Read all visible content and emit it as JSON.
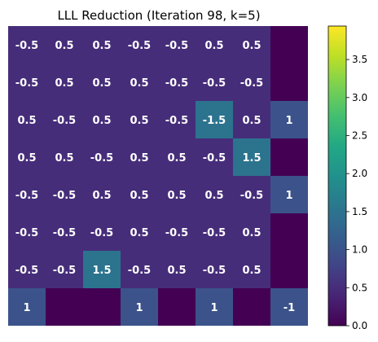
{
  "chart_data": {
    "type": "heatmap",
    "title": "LLL Reduction (Iteration 98, k=5)",
    "rows": 8,
    "cols": 8,
    "values": [
      [
        -0.5,
        0.5,
        0.5,
        -0.5,
        -0.5,
        0.5,
        0.5,
        0
      ],
      [
        -0.5,
        0.5,
        0.5,
        0.5,
        -0.5,
        -0.5,
        -0.5,
        0
      ],
      [
        0.5,
        -0.5,
        0.5,
        0.5,
        -0.5,
        -1.5,
        0.5,
        1
      ],
      [
        0.5,
        0.5,
        -0.5,
        0.5,
        0.5,
        -0.5,
        1.5,
        0
      ],
      [
        -0.5,
        -0.5,
        0.5,
        0.5,
        0.5,
        0.5,
        -0.5,
        1
      ],
      [
        -0.5,
        -0.5,
        -0.5,
        0.5,
        -0.5,
        -0.5,
        0.5,
        0
      ],
      [
        -0.5,
        -0.5,
        1.5,
        -0.5,
        0.5,
        -0.5,
        0.5,
        0
      ],
      [
        1,
        0,
        0,
        1,
        0,
        1,
        0,
        -1
      ]
    ],
    "labels": [
      [
        "-0.5",
        "0.5",
        "0.5",
        "-0.5",
        "-0.5",
        "0.5",
        "0.5",
        ""
      ],
      [
        "-0.5",
        "0.5",
        "0.5",
        "0.5",
        "-0.5",
        "-0.5",
        "-0.5",
        ""
      ],
      [
        "0.5",
        "-0.5",
        "0.5",
        "0.5",
        "-0.5",
        "-1.5",
        "0.5",
        "1"
      ],
      [
        "0.5",
        "0.5",
        "-0.5",
        "0.5",
        "0.5",
        "-0.5",
        "1.5",
        ""
      ],
      [
        "-0.5",
        "-0.5",
        "0.5",
        "0.5",
        "0.5",
        "0.5",
        "-0.5",
        "1"
      ],
      [
        "-0.5",
        "-0.5",
        "-0.5",
        "0.5",
        "-0.5",
        "-0.5",
        "0.5",
        ""
      ],
      [
        "-0.5",
        "-0.5",
        "1.5",
        "-0.5",
        "0.5",
        "-0.5",
        "0.5",
        ""
      ],
      [
        "1",
        "",
        "",
        "1",
        "",
        "1",
        "",
        "-1"
      ]
    ],
    "color_value": "absolute",
    "colormap": "viridis",
    "colorbar": {
      "min": 0.0,
      "max": 3.94,
      "ticks": [
        0.0,
        0.5,
        1.0,
        1.5,
        2.0,
        2.5,
        3.0,
        3.5
      ],
      "tick_labels": [
        "0.0",
        "0.5",
        "1.0",
        "1.5",
        "2.0",
        "2.5",
        "3.0",
        "3.5"
      ]
    }
  }
}
